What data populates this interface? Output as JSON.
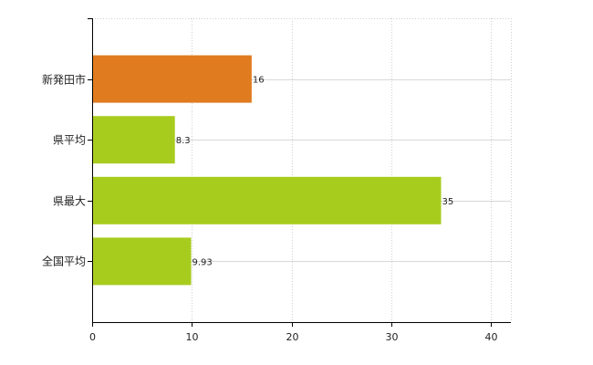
{
  "chart_data": {
    "type": "bar",
    "orientation": "horizontal",
    "categories": [
      "新発田市",
      "県平均",
      "県最大",
      "全国平均"
    ],
    "values": [
      16,
      8.3,
      35,
      9.93
    ],
    "value_labels": [
      "16",
      "8.3",
      "35",
      "9.93"
    ],
    "colors": [
      "#e07b20",
      "#a8cc1e",
      "#a8cc1e",
      "#a8cc1e"
    ],
    "xlim": [
      0,
      42
    ],
    "xticks": [
      0,
      10,
      20,
      30,
      40
    ],
    "title": "",
    "xlabel": "",
    "ylabel": "",
    "grid": true,
    "legend": "none"
  }
}
